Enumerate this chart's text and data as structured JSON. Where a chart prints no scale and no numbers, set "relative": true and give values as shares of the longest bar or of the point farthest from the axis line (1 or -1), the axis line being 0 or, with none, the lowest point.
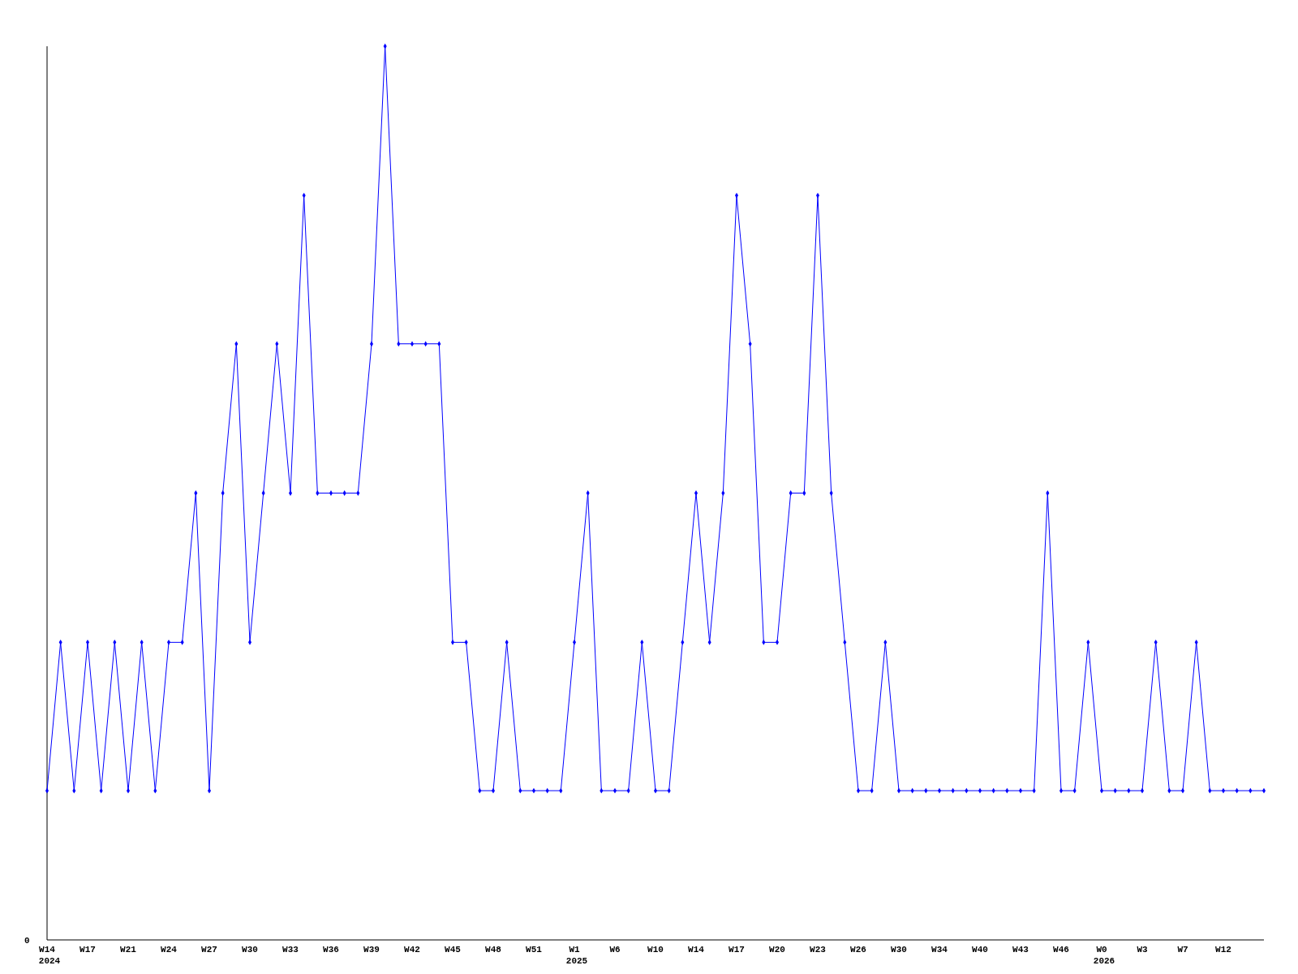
{
  "chart_data": {
    "type": "line",
    "relative": true,
    "color": "#0000ff",
    "marker": "diamond",
    "annotations": [
      "0"
    ],
    "categories": [
      "W14\n2024",
      null,
      null,
      "W17",
      null,
      null,
      "W21",
      null,
      null,
      "W24",
      null,
      null,
      "W27",
      null,
      null,
      "W30",
      null,
      null,
      "W33",
      null,
      null,
      "W36",
      null,
      null,
      "W39",
      null,
      null,
      "W42",
      null,
      null,
      "W45",
      null,
      null,
      "W48",
      null,
      null,
      "W51",
      null,
      null,
      "W1\n2025",
      null,
      null,
      "W6",
      null,
      null,
      "W10",
      null,
      null,
      "W14",
      null,
      null,
      "W17",
      null,
      null,
      "W20",
      null,
      null,
      "W23",
      null,
      null,
      "W26",
      null,
      null,
      "W30",
      null,
      null,
      "W34",
      null,
      null,
      "W40",
      null,
      null,
      "W43",
      null,
      null,
      "W46",
      null,
      null,
      "W0\n2026",
      null,
      null,
      "W3",
      null,
      null,
      "W7",
      null,
      null,
      "W12",
      null,
      null,
      null
    ],
    "values": [
      0.167,
      0.333,
      0.167,
      0.333,
      0.167,
      0.333,
      0.167,
      0.333,
      0.167,
      0.333,
      0.333,
      0.5,
      0.167,
      0.5,
      0.667,
      0.333,
      0.5,
      0.667,
      0.5,
      0.833,
      0.5,
      0.5,
      0.5,
      0.5,
      0.667,
      1,
      0.667,
      0.667,
      0.667,
      0.667,
      0.333,
      0.333,
      0.167,
      0.167,
      0.333,
      0.167,
      0.167,
      0.167,
      0.167,
      0.333,
      0.5,
      0.167,
      0.167,
      0.167,
      0.333,
      0.167,
      0.167,
      0.333,
      0.5,
      0.333,
      0.5,
      0.833,
      0.667,
      0.333,
      0.333,
      0.5,
      0.5,
      0.833,
      0.5,
      0.333,
      0.167,
      0.167,
      0.333,
      0.167,
      0.167,
      0.167,
      0.167,
      0.167,
      0.167,
      0.167,
      0.167,
      0.167,
      0.167,
      0.167,
      0.5,
      0.167,
      0.167,
      0.333,
      0.167,
      0.167,
      0.167,
      0.167,
      0.333,
      0.167,
      0.167,
      0.333,
      0.167,
      0.167,
      0.167,
      0.167,
      0.167
    ]
  }
}
